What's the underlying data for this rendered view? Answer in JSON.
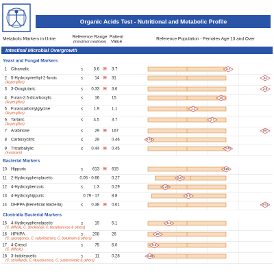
{
  "header": {
    "title": "Organic Acids Test - Nutritional and Metabolic Profile"
  },
  "columns": {
    "markers": "Metabolic Markers in Urine",
    "range": "Reference Range",
    "range_unit": "(mmol/mol creatinine)",
    "patient": "Patient",
    "value": "Value",
    "population": "Reference Population - Females Age 13 and Over"
  },
  "section": "Intestinal Microbial Overgrowth",
  "groups": [
    {
      "title": "Yeast and Fungal Markers",
      "rows": [
        {
          "number": "1",
          "name": "Citramalic",
          "op": "≤",
          "range": "3.6",
          "flag": "H",
          "value": "3.7"
        },
        {
          "number": "2",
          "name": "5-Hydroxymethyl-2-furoic",
          "source": "(Aspergillus)",
          "op": "≤",
          "range": "14",
          "flag": "H",
          "value": "31"
        },
        {
          "number": "3",
          "name": "3-Oxoglutaric",
          "op": "≤",
          "range": "0.33",
          "flag": "H",
          "value": "3.6"
        },
        {
          "number": "4",
          "name": "Furan-2,5-dicarboxylic",
          "source": "(Aspergillus)",
          "op": "≤",
          "range": "16",
          "value": "15"
        },
        {
          "number": "5",
          "name": "Furancarbonylglycine",
          "source": "(Aspergillus)",
          "op": "≤",
          "range": "1.9",
          "value": "1.1"
        },
        {
          "number": "6",
          "name": "Tartaric",
          "source": "(Aspergillus)",
          "op": "≤",
          "range": "4.5",
          "value": "3.7"
        },
        {
          "number": "7",
          "name": "Arabinose",
          "op": "≤",
          "range": "29",
          "flag": "H",
          "value": "167"
        },
        {
          "number": "8",
          "name": "Carboxycitric",
          "op": "≤",
          "range": "29",
          "value": "0.46"
        },
        {
          "number": "9",
          "name": "Tricarballylic",
          "source": "(Fusarium)",
          "op": "≤",
          "range": "0.44",
          "flag": "H",
          "value": "0.45"
        }
      ]
    },
    {
      "title": "Bacterial Markers",
      "rows": [
        {
          "number": "10",
          "name": "Hippuric",
          "op": "≤",
          "range": "613",
          "flag": "H",
          "value": "615"
        },
        {
          "number": "11",
          "name": "2-Hydroxyphenylacetic",
          "range": "0.06 - 0.66",
          "value": "0.27"
        },
        {
          "number": "12",
          "name": "4-Hydroxybenzoic",
          "op": "≤",
          "range": "1.3",
          "value": "0.29"
        },
        {
          "number": "13",
          "name": "4-Hydroxyhippuric",
          "range": "0.79 - 17",
          "value": "8.8"
        },
        {
          "number": "14",
          "name": "DHPPA (Beneficial Bacteria)",
          "op": "≤",
          "range": "0.38",
          "flag": "H",
          "value": "0.61"
        }
      ]
    },
    {
      "title": "Clostridia Bacterial Markers",
      "rows": [
        {
          "number": "15",
          "name": "4-Hydroxyphenylacetic",
          "source": "(C. difficile, C. stricklandii, C. lituseburense & others)",
          "op": "≤",
          "range": "19",
          "value": "5.1"
        },
        {
          "number": "16",
          "name": "HPHPA",
          "source": "(C. sporogenes, C. caloritolerans, C. botulinum & others)",
          "op": "≤",
          "range": "208",
          "value": "26"
        },
        {
          "number": "17",
          "name": "4-Cresol",
          "source": "(C. difficile)",
          "op": "≤",
          "range": "75",
          "value": "6.0"
        },
        {
          "number": "18",
          "name": "3-Indoleacetic",
          "source": "(C. stricklandii, C. lituseburense, C. subterminale & others)",
          "op": "≤",
          "range": "11",
          "value": "0.28"
        }
      ]
    }
  ]
}
